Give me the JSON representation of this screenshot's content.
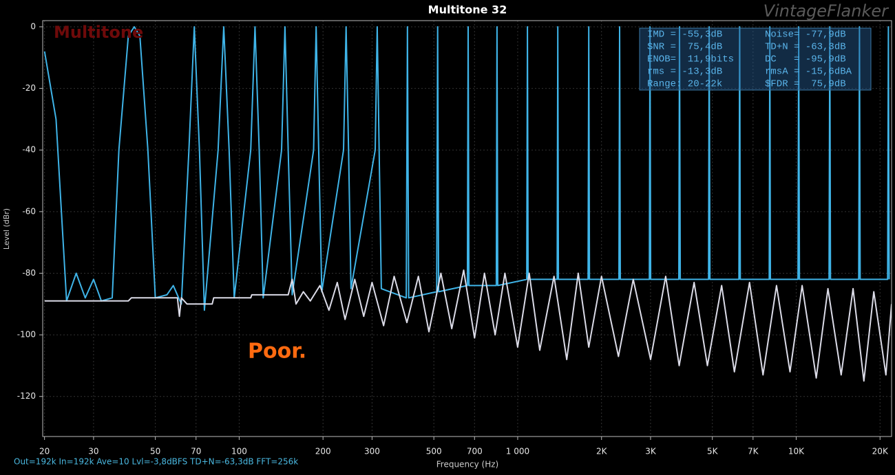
{
  "chart_data": {
    "type": "line",
    "title": "Multitone 32",
    "watermark": "VintageFlanker",
    "label": "Multitone",
    "annotation": "Poor.",
    "footer": "Out=192k In=192k Ave=10 Lvl=-3,8dBFS TD+N=-63,3dB FFT=256k",
    "x_label": "Frequency (Hz)",
    "y_label": "Level (dBr)",
    "log_x": true,
    "grid": true,
    "xlim": [
      19.7,
      22000
    ],
    "ylim": [
      -133,
      2
    ],
    "xticks": [
      20,
      30,
      50,
      70,
      100,
      200,
      300,
      500,
      700,
      {
        "value": 1000,
        "label": "1 000"
      },
      {
        "value": 2000,
        "label": "2K"
      },
      {
        "value": 3000,
        "label": "3K"
      },
      {
        "value": 5000,
        "label": "5K"
      },
      {
        "value": 7000,
        "label": "7K"
      },
      {
        "value": 10000,
        "label": "10K"
      },
      {
        "value": 20000,
        "label": "20K"
      }
    ],
    "yticks": [
      0,
      -20,
      -40,
      -60,
      -80,
      -100,
      -120
    ],
    "stats": [
      [
        "IMD = -55,3dB",
        "Noise= -77,9dB"
      ],
      [
        "SNR =  75,4dB",
        "TD+N = -63,3dB"
      ],
      [
        "ENOB=  11,9bits",
        "DC   = -95,9dB"
      ],
      [
        "rms = -13,3dB",
        "rmsA = -15,6dBA"
      ],
      [
        "Range: 20-22k",
        "$FDR =  75,9dB"
      ]
    ],
    "series": [
      {
        "color": "#3fb4e8",
        "x": [
          20,
          22,
          24,
          26,
          28,
          30,
          32,
          35,
          37,
          40,
          42,
          44,
          47,
          50,
          55,
          58,
          62,
          66,
          69,
          72,
          75,
          84,
          88,
          92,
          96,
          110,
          114,
          118,
          122,
          142,
          146,
          150,
          155,
          185,
          189,
          193,
          198,
          237,
          242,
          247,
          252,
          308,
          313,
          318,
          324,
          398,
          402,
          406,
          512,
          516,
          520,
          660,
          664,
          668,
          838,
          843,
          848,
          1078,
          1084,
          1090,
          1386,
          1393,
          1400,
          1790,
          1800,
          1810,
          2310,
          2323,
          2336,
          2970,
          2986,
          3002,
          3790,
          3812,
          3834,
          4845,
          4872,
          4900,
          6230,
          6267,
          6300,
          8000,
          8040,
          8080,
          10150,
          10210,
          10270,
          13120,
          13200,
          13280,
          16770,
          16870,
          16970,
          21300,
          21430,
          21560
        ],
        "values": [
          -8,
          -30,
          -89,
          -80,
          -88,
          -82,
          -89,
          -88,
          -40,
          -3,
          0,
          -3,
          -40,
          -88,
          -87,
          -84,
          -90,
          -40,
          0,
          -40,
          -92,
          -40,
          0,
          -40,
          -88,
          -40,
          0,
          -40,
          -88,
          -40,
          0,
          -40,
          -87,
          -40,
          0,
          -40,
          -86,
          -40,
          0,
          -40,
          -85,
          -40,
          0,
          -40,
          -85,
          -88,
          0,
          -88,
          -86,
          0,
          -86,
          -84,
          0,
          -84,
          -84,
          0,
          -84,
          -82,
          0,
          -82,
          -82,
          0,
          -82,
          -82,
          0,
          -82,
          -82,
          0,
          -82,
          -82,
          0,
          -82,
          -82,
          0,
          -82,
          -82,
          0,
          -82,
          -82,
          0,
          -82,
          -82,
          0,
          -82,
          -82,
          0,
          -82,
          -82,
          0,
          -82,
          -82,
          0,
          -82,
          -82,
          0,
          -82
        ]
      },
      {
        "color": "#dcdce8",
        "x": [
          20,
          40,
          41,
          60,
          61,
          62,
          65,
          80,
          81,
          110,
          111,
          150,
          155,
          160,
          170,
          180,
          195,
          210,
          225,
          240,
          260,
          280,
          300,
          330,
          360,
          400,
          440,
          480,
          530,
          580,
          640,
          700,
          760,
          830,
          900,
          1000,
          1100,
          1200,
          1350,
          1500,
          1650,
          1800,
          2000,
          2300,
          2600,
          3000,
          3400,
          3800,
          4300,
          4800,
          5400,
          6000,
          6800,
          7600,
          8500,
          9500,
          10500,
          11800,
          13000,
          14500,
          16000,
          17500,
          19000,
          21000,
          22000
        ],
        "values": [
          -89,
          -89,
          -88,
          -88,
          -94,
          -88,
          -90,
          -90,
          -88,
          -88,
          -87,
          -87,
          -82,
          -90,
          -86,
          -89,
          -84,
          -92,
          -83,
          -95,
          -82,
          -94,
          -83,
          -97,
          -81,
          -96,
          -81,
          -99,
          -80,
          -98,
          -79,
          -101,
          -80,
          -100,
          -80,
          -104,
          -80,
          -105,
          -81,
          -108,
          -80,
          -104,
          -81,
          -107,
          -82,
          -108,
          -81,
          -110,
          -83,
          -110,
          -84,
          -112,
          -83,
          -113,
          -84,
          -112,
          -84,
          -114,
          -85,
          -113,
          -85,
          -115,
          -86,
          -113,
          -90
        ]
      }
    ]
  }
}
